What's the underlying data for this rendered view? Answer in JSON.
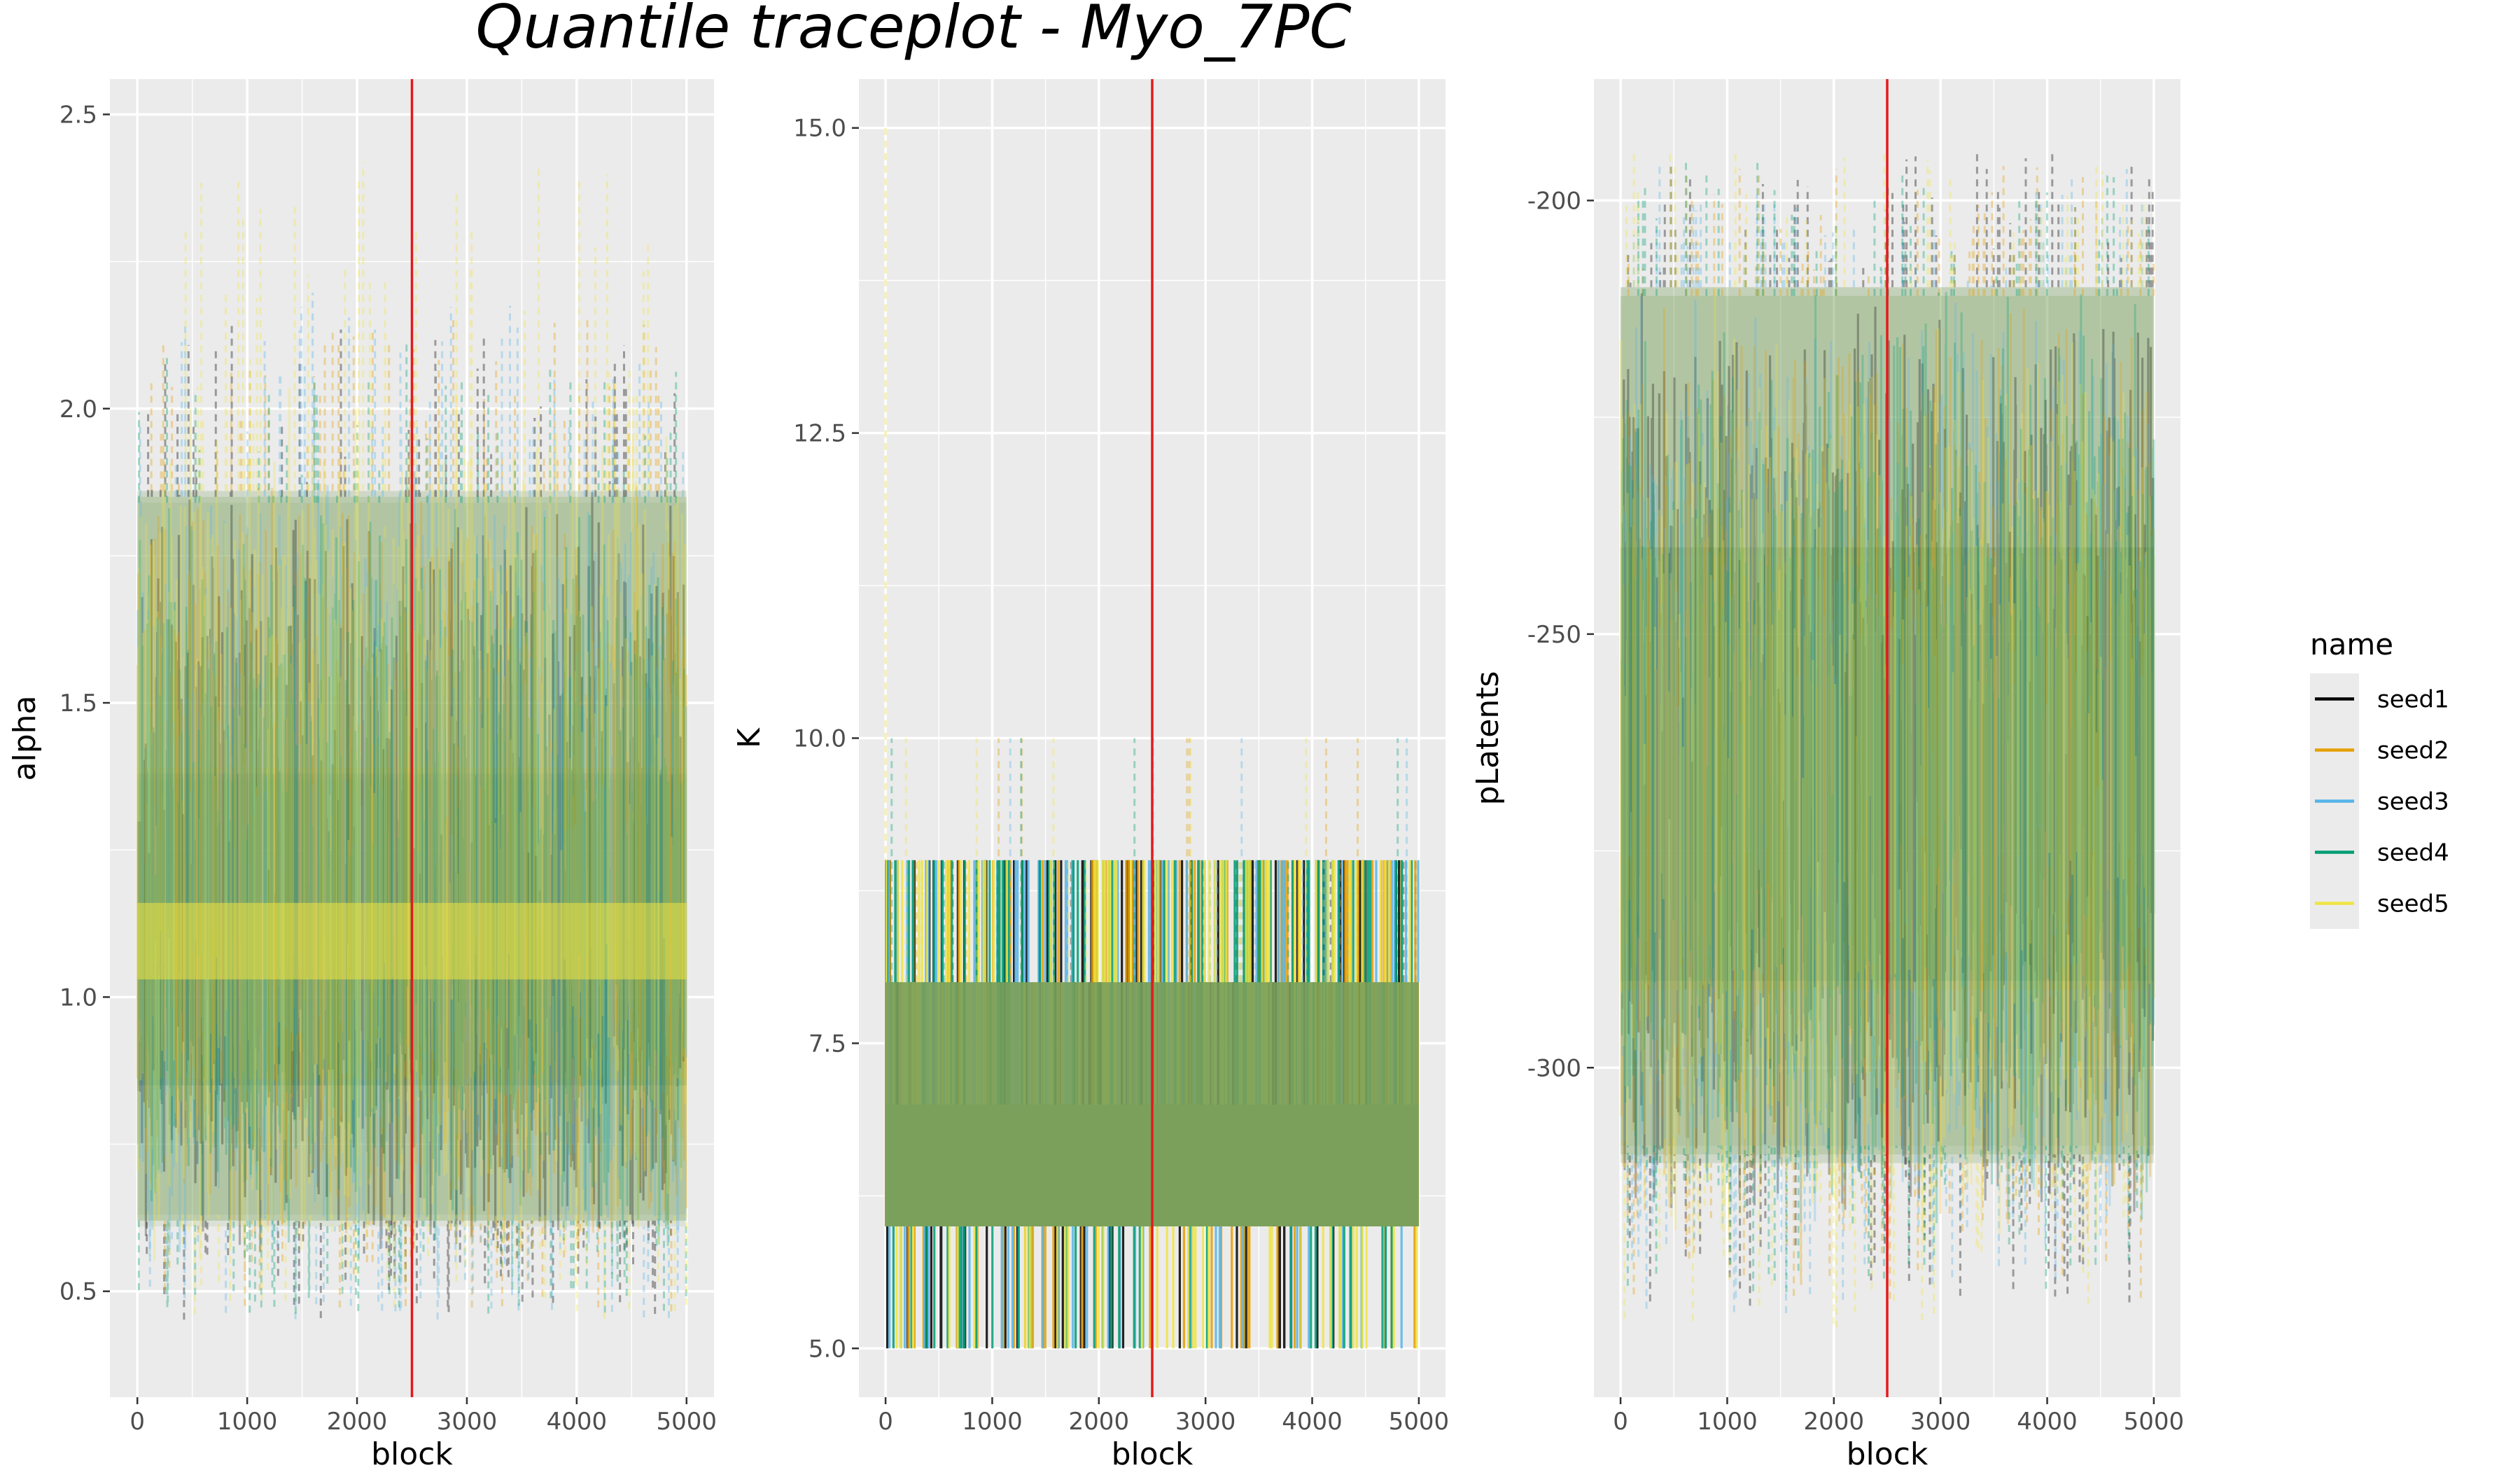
{
  "title": "Quantile traceplot - Myo_7PC",
  "legend": {
    "title": "name",
    "placement": "right",
    "entries": [
      {
        "name": "seed1",
        "color": "#000000"
      },
      {
        "name": "seed2",
        "color": "#E69F00"
      },
      {
        "name": "seed3",
        "color": "#56B4E9"
      },
      {
        "name": "seed4",
        "color": "#009E73"
      },
      {
        "name": "seed5",
        "color": "#F0E442"
      }
    ]
  },
  "colors": {
    "panel_background": "#EBEBEB",
    "grid": "#FFFFFF",
    "vline": "#E41A1C",
    "band_dense": "#7BA05B"
  },
  "chart_data": [
    {
      "type": "line",
      "title": "",
      "xlabel": "block",
      "ylabel": "alpha",
      "xlim": [
        -250,
        5250
      ],
      "ylim": [
        0.32,
        2.56
      ],
      "xticks": [
        0,
        1000,
        2000,
        3000,
        4000,
        5000
      ],
      "xtick_labels": [
        "0",
        "1000",
        "2000",
        "3000",
        "4000",
        "5000"
      ],
      "yticks": [
        0.5,
        1.0,
        1.5,
        2.0,
        2.5
      ],
      "ytick_labels": [
        "0.5",
        "1.0",
        "1.5",
        "2.0",
        "2.5"
      ],
      "vline_x": 2500,
      "grid": true,
      "series": [
        {
          "name": "seed1",
          "quantiles": [
            0.62,
            0.85,
            1.1,
            1.38,
            1.85
          ],
          "range": [
            0.45,
            2.15
          ]
        },
        {
          "name": "seed2",
          "quantiles": [
            0.62,
            0.86,
            1.1,
            1.39,
            1.86
          ],
          "range": [
            0.46,
            2.16
          ]
        },
        {
          "name": "seed3",
          "quantiles": [
            0.61,
            0.85,
            1.09,
            1.38,
            1.85
          ],
          "range": [
            0.45,
            2.2
          ]
        },
        {
          "name": "seed4",
          "quantiles": [
            0.62,
            0.85,
            1.1,
            1.37,
            1.84
          ],
          "range": [
            0.46,
            2.12
          ]
        },
        {
          "name": "seed5",
          "quantiles": [
            0.63,
            0.86,
            1.1,
            1.39,
            1.86
          ],
          "range": [
            0.44,
            2.42
          ]
        }
      ]
    },
    {
      "type": "line",
      "title": "",
      "xlabel": "block",
      "ylabel": "K",
      "xlim": [
        -250,
        5250
      ],
      "ylim": [
        4.6,
        15.4
      ],
      "xticks": [
        0,
        1000,
        2000,
        3000,
        4000,
        5000
      ],
      "xtick_labels": [
        "0",
        "1000",
        "2000",
        "3000",
        "4000",
        "5000"
      ],
      "yticks": [
        5.0,
        7.5,
        10.0,
        12.5,
        15.0
      ],
      "ytick_labels": [
        "5.0",
        "7.5",
        "10.0",
        "12.5",
        "15.0"
      ],
      "vline_x": 2500,
      "grid": true,
      "series": [
        {
          "name": "seed1",
          "quantiles": [
            6,
            6,
            7,
            7,
            8
          ],
          "range": [
            5,
            9
          ]
        },
        {
          "name": "seed2",
          "quantiles": [
            6,
            6,
            7,
            7,
            8
          ],
          "range": [
            5,
            10
          ]
        },
        {
          "name": "seed3",
          "quantiles": [
            6,
            6,
            7,
            7,
            8
          ],
          "range": [
            5,
            10
          ]
        },
        {
          "name": "seed4",
          "quantiles": [
            6,
            6,
            7,
            7,
            8
          ],
          "range": [
            5,
            10
          ]
        },
        {
          "name": "seed5",
          "quantiles": [
            6,
            6,
            7,
            7,
            8
          ],
          "range": [
            5,
            15
          ]
        }
      ]
    },
    {
      "type": "line",
      "title": "",
      "xlabel": "block",
      "ylabel": "pLatents",
      "xlim": [
        -250,
        5250
      ],
      "ylim": [
        -338,
        -186
      ],
      "xticks": [
        0,
        1000,
        2000,
        3000,
        4000,
        5000
      ],
      "xtick_labels": [
        "0",
        "1000",
        "2000",
        "3000",
        "4000",
        "5000"
      ],
      "yticks": [
        -300,
        -250,
        -200
      ],
      "ytick_labels": [
        "-300",
        "-250",
        "-200"
      ],
      "vline_x": 2500,
      "grid": true,
      "series": [
        {
          "name": "seed1",
          "quantiles": [
            -310,
            -290,
            -270,
            -240,
            -210
          ],
          "range": [
            -328,
            -194
          ]
        },
        {
          "name": "seed2",
          "quantiles": [
            -311,
            -291,
            -270,
            -240,
            -211
          ],
          "range": [
            -327,
            -195
          ]
        },
        {
          "name": "seed3",
          "quantiles": [
            -310,
            -290,
            -269,
            -241,
            -210
          ],
          "range": [
            -329,
            -196
          ]
        },
        {
          "name": "seed4",
          "quantiles": [
            -309,
            -290,
            -270,
            -240,
            -211
          ],
          "range": [
            -326,
            -195
          ]
        },
        {
          "name": "seed5",
          "quantiles": [
            -311,
            -291,
            -271,
            -241,
            -210
          ],
          "range": [
            -330,
            -194
          ]
        }
      ]
    }
  ]
}
